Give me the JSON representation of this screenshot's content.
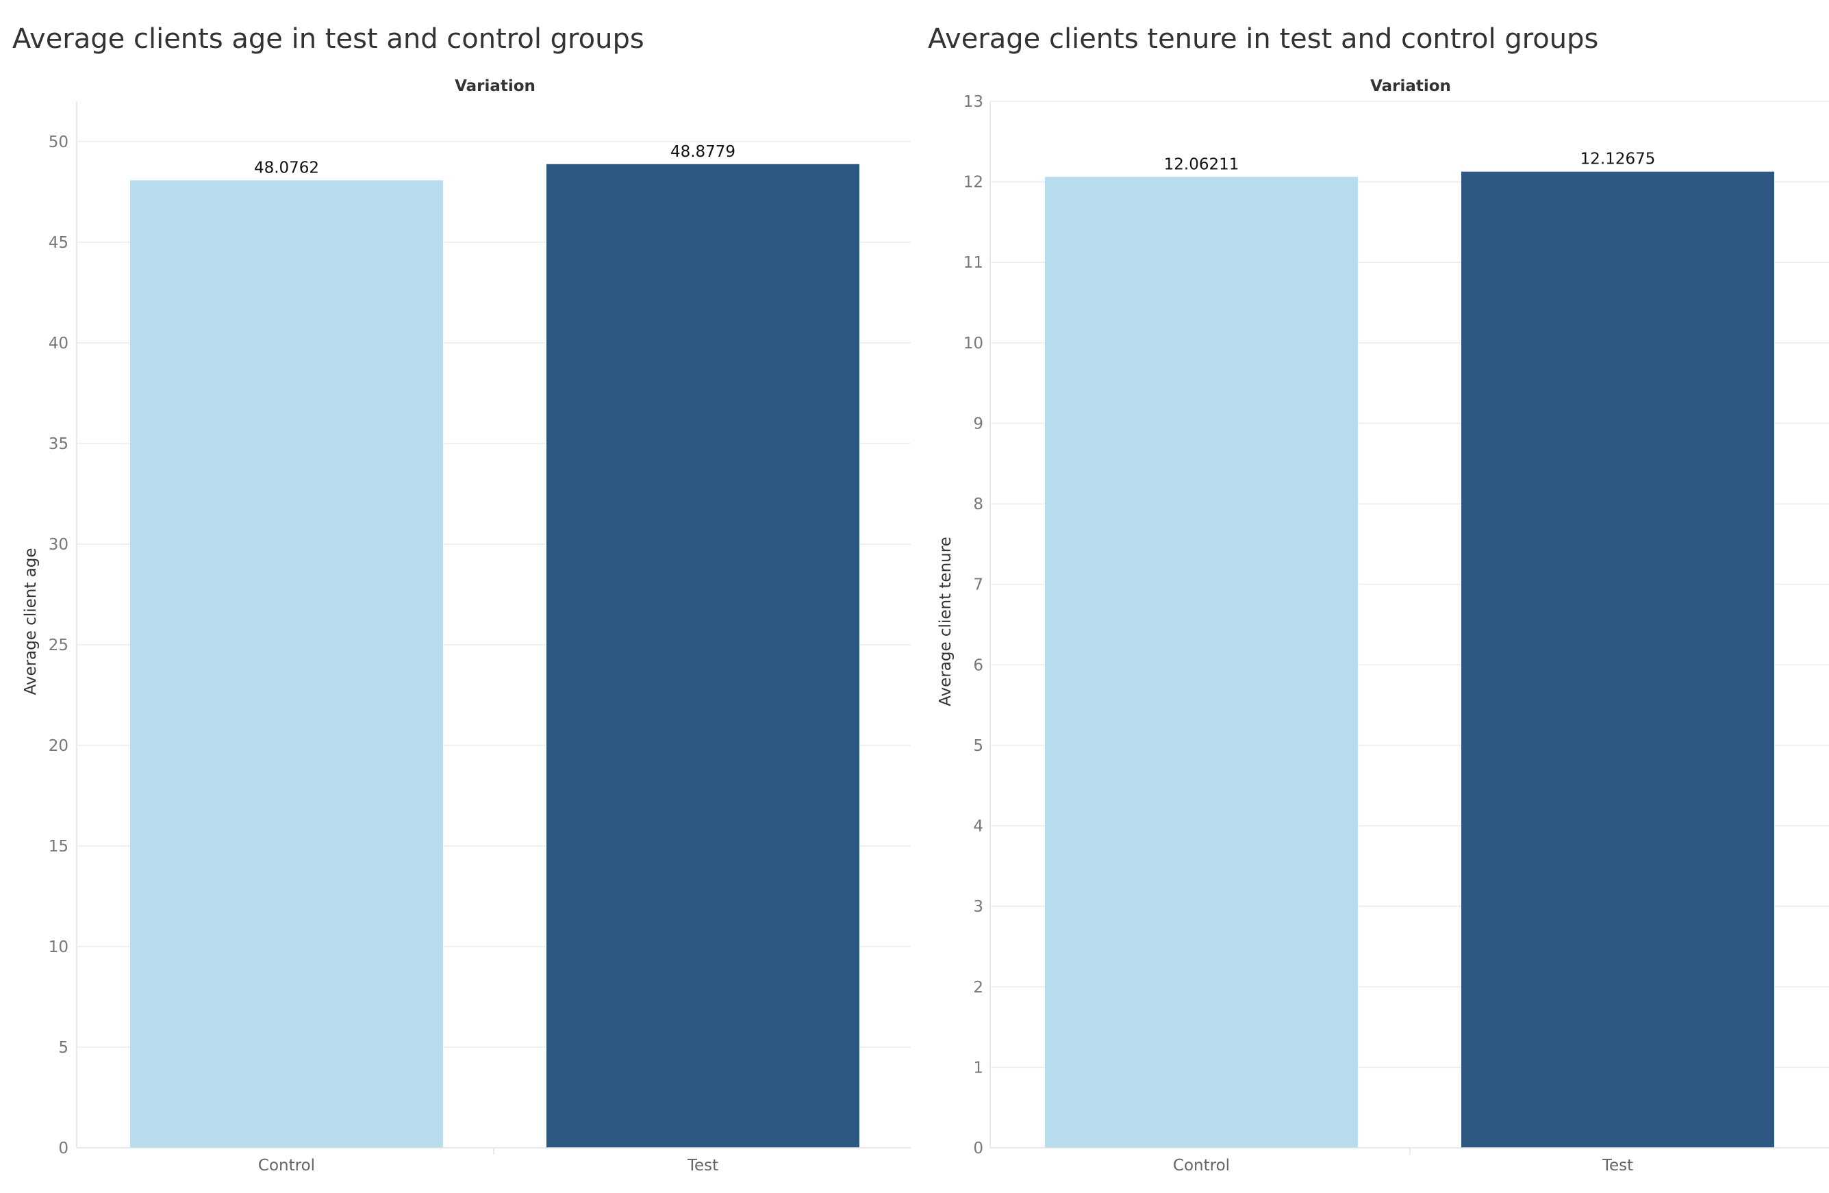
{
  "colors": {
    "control": "#b9ddef",
    "test": "#2c5881",
    "grid": "#ececec",
    "axis": "#e2e2e2"
  },
  "chart_data": [
    {
      "type": "bar",
      "title": "Average clients age in test and control groups",
      "header": "Variation",
      "ylabel": "Average client age",
      "categories": [
        "Control",
        "Test"
      ],
      "values": [
        48.0762,
        48.8779
      ],
      "value_labels": [
        "48.0762",
        "48.8779"
      ],
      "yticks": [
        0,
        5,
        10,
        15,
        20,
        25,
        30,
        35,
        40,
        45,
        50
      ],
      "ylim": [
        0,
        52
      ],
      "grid": true,
      "legend": "none"
    },
    {
      "type": "bar",
      "title": "Average clients tenure in test and control groups",
      "header": "Variation",
      "ylabel": "Average client tenure",
      "categories": [
        "Control",
        "Test"
      ],
      "values": [
        12.06211,
        12.12675
      ],
      "value_labels": [
        "12.06211",
        "12.12675"
      ],
      "yticks": [
        0,
        1,
        2,
        3,
        4,
        5,
        6,
        7,
        8,
        9,
        10,
        11,
        12,
        13
      ],
      "ylim": [
        0,
        13
      ],
      "grid": true,
      "legend": "none"
    }
  ]
}
